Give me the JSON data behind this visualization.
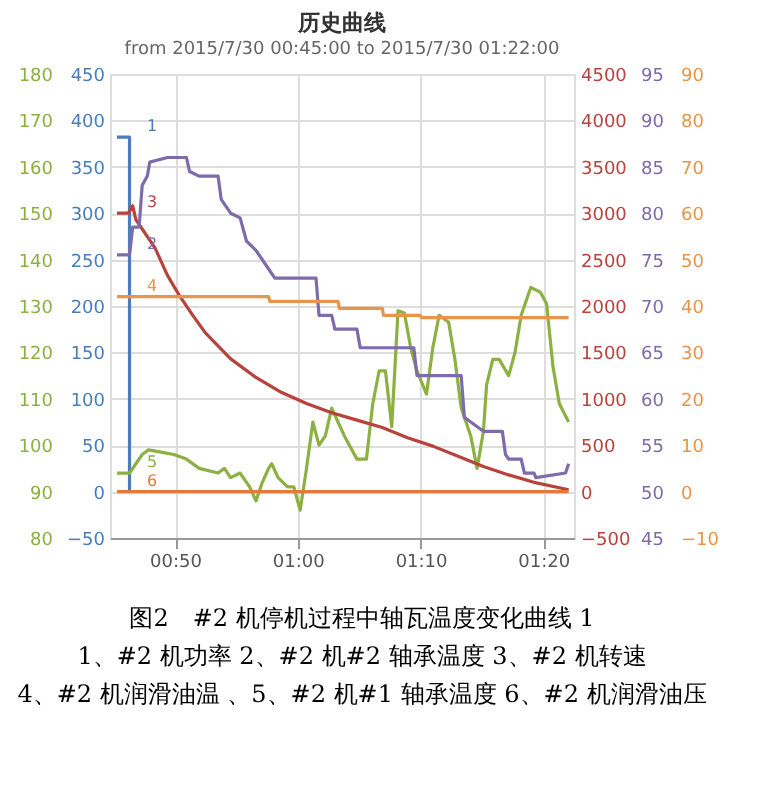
{
  "chart_data": [
    {
      "type": "line",
      "title": "历史曲线",
      "subtitle": "from 2015/7/30 00:45:00 to 2015/7/30 01:22:00",
      "xlim": [
        0.745,
        1.375
      ],
      "xticks": [
        {
          "value": 0.8333,
          "label": "00:50"
        },
        {
          "value": 1.0,
          "label": "01:00"
        },
        {
          "value": 1.1667,
          "label": "01:10"
        },
        {
          "value": 1.3333,
          "label": "01:20"
        }
      ],
      "ylim": [
        -50,
        450
      ],
      "yticks": [
        -50,
        0,
        50,
        100,
        150,
        200,
        250,
        300,
        350,
        400,
        450
      ],
      "y2lim": [
        -500,
        4500
      ],
      "y2ticks": [
        -500,
        0,
        500,
        1000,
        1500,
        2000,
        2500,
        3000,
        3500,
        4000,
        4500
      ],
      "y3lim": [
        80,
        180
      ],
      "y3ticks": [
        80,
        90,
        100,
        110,
        120,
        130,
        140,
        150,
        160,
        170,
        180
      ],
      "grid": true,
      "legend": false,
      "line_style": "solid",
      "marker": "none",
      "series": [
        {
          "name": "1",
          "color": "#4a7ebb",
          "axis": "y",
          "x": [
            0.7545,
            0.7715,
            0.7715
          ],
          "values": [
            382,
            382,
            0
          ]
        },
        {
          "name": "3",
          "color": "#b8423c",
          "axis": "y2",
          "x": [
            0.7545,
            0.7698,
            0.7758,
            0.7801,
            0.7887,
            0.8059,
            0.823,
            0.8402,
            0.8574,
            0.8745,
            0.8917,
            0.9088,
            0.9432,
            0.9775,
            1.0118,
            1.046,
            1.0803,
            1.1147,
            1.149,
            1.1833,
            1.2176,
            1.252,
            1.2863,
            1.3207,
            1.3677
          ],
          "values": [
            3000,
            3000,
            3080,
            2930,
            2830,
            2630,
            2330,
            2100,
            1900,
            1710,
            1570,
            1430,
            1230,
            1070,
            950,
            850,
            770,
            690,
            580,
            490,
            380,
            270,
            180,
            100,
            20
          ]
        },
        {
          "name": "5",
          "color": "#8db043",
          "axis": "y3",
          "x": [
            0.7545,
            0.7715,
            0.7887,
            0.7973,
            0.8144,
            0.8316,
            0.8488,
            0.866,
            0.8917,
            0.9003,
            0.9088,
            0.9217,
            0.9346,
            0.9432,
            0.9518,
            0.9603,
            0.9646,
            0.9732,
            0.9861,
            0.9946,
            1.0032,
            1.0118,
            1.0204,
            1.0288,
            1.0374,
            1.046,
            1.0546,
            1.0632,
            1.0803,
            1.0932,
            1.1018,
            1.1104,
            1.119,
            1.1275,
            1.1361,
            1.1447,
            1.1533,
            1.1618,
            1.1747,
            1.1833,
            1.1919,
            1.2048,
            1.2133,
            1.2219,
            1.2348,
            1.2434,
            1.252,
            1.2563,
            1.2648,
            1.2734,
            1.2863,
            1.2949,
            1.3033,
            1.3163,
            1.3292,
            1.3378,
            1.3464,
            1.355,
            1.3677
          ],
          "values": [
            94,
            94,
            98,
            99,
            98.5,
            98,
            97,
            95,
            94,
            95,
            93,
            94,
            91,
            88,
            92,
            95,
            96,
            93,
            91,
            91,
            86,
            95,
            105,
            100,
            102,
            108,
            105,
            102,
            97,
            97,
            109,
            116,
            116,
            104,
            129,
            128.5,
            121,
            116,
            111,
            121,
            128,
            126.5,
            118.5,
            108,
            102,
            95,
            103,
            113,
            118.5,
            118.5,
            115,
            120,
            128,
            134,
            133,
            130.5,
            117,
            109,
            105
          ]
        }
      ],
      "annotations": [
        "图2　#2 机停机过程中轴瓦温度变化曲线 1",
        "1、#2 机功率  2、#2 机#2 轴承温度 3、#2 机转速",
        "4、#2 机润滑油温 、5、#2 机#1 轴承温度 6、#2 机润滑油压"
      ]
    },
    {
      "type": "line",
      "xlim": [
        0.745,
        1.375
      ],
      "tick_labels": "y",
      "ylim": [
        45,
        95
      ],
      "yticks": [
        45,
        50,
        55,
        60,
        65,
        70,
        75,
        80,
        85,
        90,
        95
      ],
      "y2lim": [
        -10,
        90
      ],
      "y2ticks": [
        -10,
        0,
        10,
        20,
        30,
        40,
        50,
        60,
        70,
        80,
        90
      ],
      "legend": false,
      "line_style": "solid",
      "marker": "none",
      "series": [
        {
          "name": "2",
          "color": "#7e6bab",
          "axis": "y",
          "x": [
            0.7545,
            0.7715,
            0.7758,
            0.7845,
            0.7887,
            0.7957,
            0.799,
            0.823,
            0.8488,
            0.853,
            0.866,
            0.8917,
            0.896,
            0.9088,
            0.9217,
            0.9303,
            0.9432,
            0.956,
            0.9688,
            1.0247,
            1.0288,
            1.046,
            1.0503,
            1.0803,
            1.0847,
            1.1575,
            1.1618,
            1.2218,
            1.2262,
            1.2348,
            1.252,
            1.2777,
            1.282,
            1.2863,
            1.3033,
            1.3077,
            1.3207,
            1.3232,
            1.3635,
            1.3677
          ],
          "values": [
            75.5,
            75.5,
            78.5,
            78.5,
            83,
            84,
            85.5,
            86,
            86,
            84.5,
            84,
            84,
            81.5,
            80,
            79.5,
            77,
            76,
            74.5,
            73,
            73,
            69,
            69,
            67.5,
            67.5,
            65.5,
            65.5,
            62.5,
            62.5,
            58,
            57.5,
            56.5,
            56.5,
            54,
            53.5,
            53.5,
            52,
            52,
            51.5,
            52,
            53
          ]
        },
        {
          "name": "4",
          "color": "#e8944a",
          "axis": "y2",
          "x": [
            0.7545,
            0.9603,
            0.962,
            1.0546,
            1.0563,
            1.1147,
            1.1164,
            1.1661,
            1.1678,
            1.3677
          ],
          "values": [
            42,
            42,
            41,
            41,
            39.5,
            39.5,
            38,
            38,
            37.5,
            37.5
          ]
        },
        {
          "name": "6",
          "color": "#e07b39",
          "axis": "y2",
          "x": [
            0.7545,
            1.3677
          ],
          "values": [
            0,
            0
          ]
        }
      ]
    }
  ]
}
